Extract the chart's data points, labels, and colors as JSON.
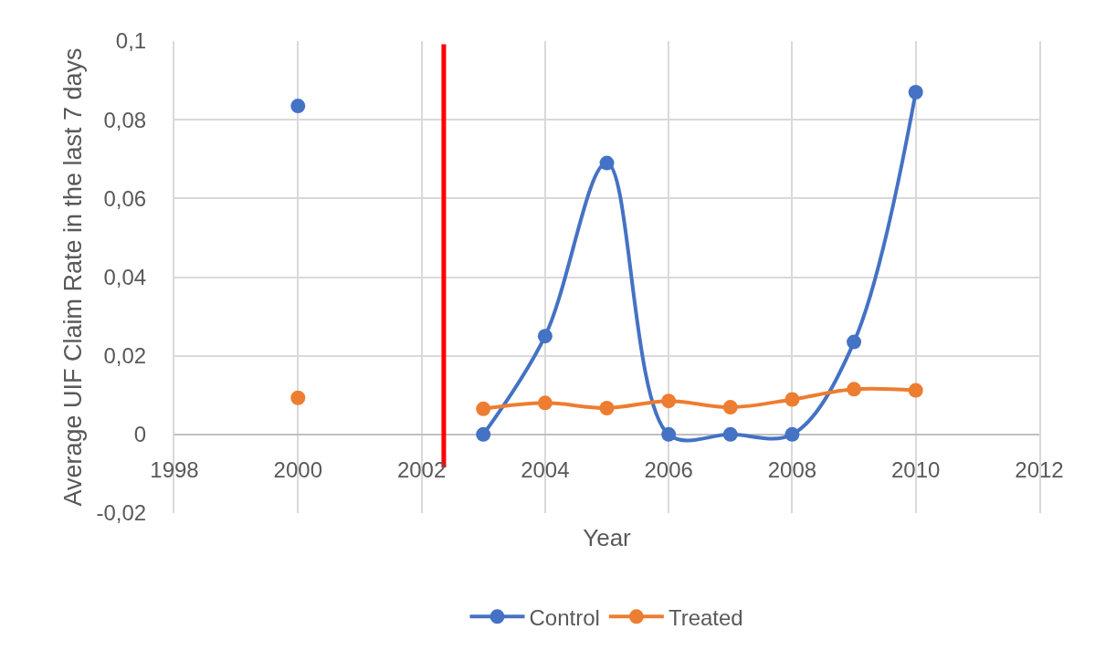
{
  "chart_data": {
    "type": "line",
    "xlabel": "Year",
    "ylabel": "Average UIF Claim Rate in the last 7 days",
    "x": [
      2000,
      2001,
      2002,
      2003,
      2004,
      2005,
      2006,
      2007,
      2008,
      2009,
      2010
    ],
    "series": [
      {
        "name": "Control",
        "color": "#4472c4",
        "values": [
          0.0835,
          null,
          null,
          0,
          0.025,
          0.069,
          0,
          0,
          0,
          0.0235,
          0.087
        ]
      },
      {
        "name": "Treated",
        "color": "#ed7d31",
        "values": [
          0.0093,
          null,
          null,
          0.0065,
          0.008,
          0.0067,
          0.0085,
          0.0069,
          0.0089,
          0.0115,
          0.0112
        ]
      },
      {
        "type": "line",
        "color": "#ff0000",
        "x": [
          2002.36,
          2002.36
        ],
        "values": [
          0.0992,
          -0.0084
        ],
        "marker": "none"
      }
    ],
    "xlim": [
      1998,
      2012
    ],
    "xticks": [
      1998,
      2000,
      2002,
      2004,
      2006,
      2008,
      2010,
      2012
    ],
    "ylim": [
      -0.02,
      0.1
    ],
    "yticks": [
      {
        "value": -0.02,
        "label": "-0,02"
      },
      0,
      {
        "value": 0.02,
        "label": "0,02"
      },
      {
        "value": 0.04,
        "label": "0,04"
      },
      {
        "value": 0.06,
        "label": "0,06"
      },
      {
        "value": 0.08,
        "label": "0,08"
      },
      {
        "value": 0.1,
        "label": "0,1"
      }
    ],
    "grid": true,
    "legend": "bottom",
    "marker": "circle",
    "line_style": "solid"
  }
}
